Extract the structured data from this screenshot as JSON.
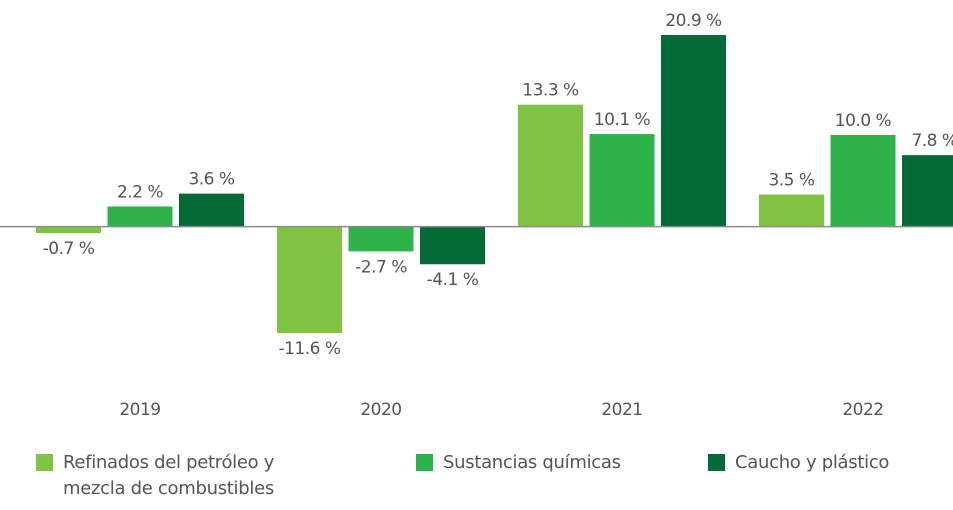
{
  "chart_data": {
    "type": "bar",
    "categories": [
      "2019",
      "2020",
      "2021",
      "2022"
    ],
    "series": [
      {
        "name": "Refinados del petróleo y mezcla de combustibles",
        "color": "#80c342",
        "values": [
          -0.7,
          -11.6,
          13.3,
          3.5
        ],
        "value_labels": [
          "-0.7 %",
          "-11.6 %",
          "13.3 %",
          "3.5 %"
        ]
      },
      {
        "name": "Sustancias químicas",
        "color": "#2db34a",
        "values": [
          2.2,
          -2.7,
          10.1,
          10.0
        ],
        "value_labels": [
          "2.2 %",
          "-2.7 %",
          "10.1 %",
          "10.0 %"
        ]
      },
      {
        "name": "Caucho y plástico",
        "color": "#046a38",
        "values": [
          3.6,
          -4.1,
          20.9,
          7.8
        ],
        "value_labels": [
          "3.6 %",
          "-4.1 %",
          "20.9 %",
          "7.8 %"
        ]
      }
    ]
  }
}
